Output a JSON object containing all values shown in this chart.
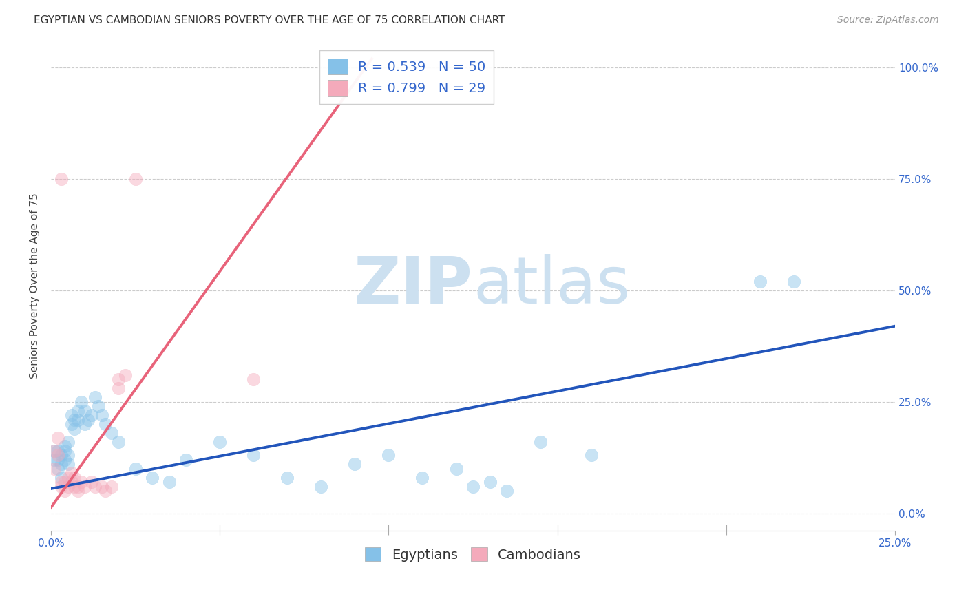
{
  "title": "EGYPTIAN VS CAMBODIAN SENIORS POVERTY OVER THE AGE OF 75 CORRELATION CHART",
  "source": "Source: ZipAtlas.com",
  "ylabel": "Seniors Poverty Over the Age of 75",
  "xlim": [
    0.0,
    0.25
  ],
  "ylim": [
    -0.04,
    1.06
  ],
  "xticks": [
    0.0,
    0.05,
    0.1,
    0.15,
    0.2,
    0.25
  ],
  "yticks": [
    0.0,
    0.25,
    0.5,
    0.75,
    1.0
  ],
  "ytick_labels": [
    "0.0%",
    "25.0%",
    "50.0%",
    "75.0%",
    "100.0%"
  ],
  "xtick_labels": [
    "0.0%",
    "",
    "",
    "",
    "",
    "25.0%"
  ],
  "background_color": "#ffffff",
  "grid_color": "#cccccc",
  "egyptians_color": "#85C1E8",
  "cambodians_color": "#F4AABB",
  "egyptians_line_color": "#2255BB",
  "cambodians_line_color": "#E8637A",
  "egyptians_R": 0.539,
  "egyptians_N": 50,
  "cambodians_R": 0.799,
  "cambodians_N": 29,
  "egyptians_scatter": [
    [
      0.001,
      0.14
    ],
    [
      0.001,
      0.12
    ],
    [
      0.002,
      0.14
    ],
    [
      0.002,
      0.1
    ],
    [
      0.002,
      0.12
    ],
    [
      0.003,
      0.13
    ],
    [
      0.003,
      0.11
    ],
    [
      0.003,
      0.08
    ],
    [
      0.004,
      0.15
    ],
    [
      0.004,
      0.12
    ],
    [
      0.004,
      0.14
    ],
    [
      0.005,
      0.16
    ],
    [
      0.005,
      0.13
    ],
    [
      0.005,
      0.11
    ],
    [
      0.006,
      0.2
    ],
    [
      0.006,
      0.22
    ],
    [
      0.007,
      0.21
    ],
    [
      0.007,
      0.19
    ],
    [
      0.008,
      0.23
    ],
    [
      0.008,
      0.21
    ],
    [
      0.009,
      0.25
    ],
    [
      0.01,
      0.23
    ],
    [
      0.01,
      0.2
    ],
    [
      0.011,
      0.21
    ],
    [
      0.012,
      0.22
    ],
    [
      0.013,
      0.26
    ],
    [
      0.014,
      0.24
    ],
    [
      0.015,
      0.22
    ],
    [
      0.016,
      0.2
    ],
    [
      0.018,
      0.18
    ],
    [
      0.02,
      0.16
    ],
    [
      0.025,
      0.1
    ],
    [
      0.03,
      0.08
    ],
    [
      0.035,
      0.07
    ],
    [
      0.04,
      0.12
    ],
    [
      0.05,
      0.16
    ],
    [
      0.06,
      0.13
    ],
    [
      0.07,
      0.08
    ],
    [
      0.08,
      0.06
    ],
    [
      0.09,
      0.11
    ],
    [
      0.1,
      0.13
    ],
    [
      0.11,
      0.08
    ],
    [
      0.12,
      0.1
    ],
    [
      0.125,
      0.06
    ],
    [
      0.13,
      0.07
    ],
    [
      0.135,
      0.05
    ],
    [
      0.145,
      0.16
    ],
    [
      0.16,
      0.13
    ],
    [
      0.21,
      0.52
    ],
    [
      0.22,
      0.52
    ]
  ],
  "cambodians_scatter": [
    [
      0.001,
      0.14
    ],
    [
      0.001,
      0.1
    ],
    [
      0.002,
      0.17
    ],
    [
      0.002,
      0.13
    ],
    [
      0.003,
      0.07
    ],
    [
      0.003,
      0.06
    ],
    [
      0.004,
      0.07
    ],
    [
      0.004,
      0.05
    ],
    [
      0.005,
      0.06
    ],
    [
      0.005,
      0.08
    ],
    [
      0.006,
      0.09
    ],
    [
      0.006,
      0.07
    ],
    [
      0.007,
      0.08
    ],
    [
      0.007,
      0.06
    ],
    [
      0.008,
      0.06
    ],
    [
      0.008,
      0.05
    ],
    [
      0.009,
      0.07
    ],
    [
      0.01,
      0.06
    ],
    [
      0.012,
      0.07
    ],
    [
      0.013,
      0.06
    ],
    [
      0.015,
      0.06
    ],
    [
      0.016,
      0.05
    ],
    [
      0.018,
      0.06
    ],
    [
      0.02,
      0.3
    ],
    [
      0.02,
      0.28
    ],
    [
      0.022,
      0.31
    ],
    [
      0.025,
      0.75
    ],
    [
      0.003,
      0.75
    ],
    [
      0.06,
      0.3
    ]
  ],
  "watermark_zip": "ZIP",
  "watermark_atlas": "atlas",
  "watermark_color": "#cce0f0",
  "title_fontsize": 11,
  "axis_label_fontsize": 11,
  "tick_fontsize": 11,
  "legend_fontsize": 14,
  "source_fontsize": 10,
  "scatter_size": 180,
  "scatter_alpha": 0.45,
  "line_width": 2.8,
  "egyptians_line_x": [
    0.0,
    0.25
  ],
  "egyptians_line_y": [
    0.055,
    0.42
  ],
  "cambodians_line_x": [
    -0.005,
    0.095
  ],
  "cambodians_line_y": [
    -0.04,
    1.02
  ]
}
